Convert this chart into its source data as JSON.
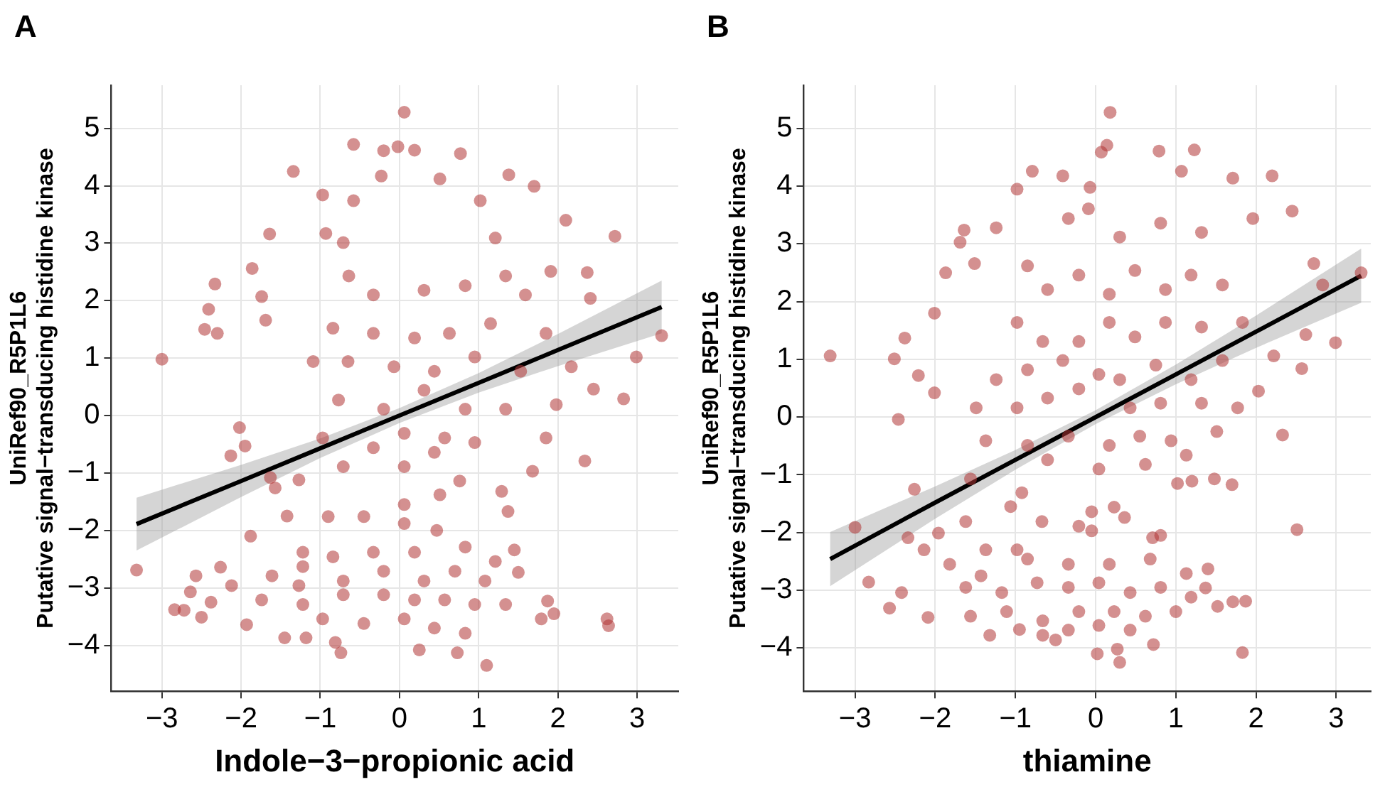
{
  "chart_data": [
    {
      "type": "scatter",
      "title": "A",
      "xlabel": "Indole−3−propionic acid",
      "ylabel": "UniRef90_R5P1L6\nPutative signal−transducing histidine kinase",
      "xlim": [
        -3.64,
        3.52
      ],
      "ylim": [
        -4.8,
        5.75
      ],
      "xticks": [
        {
          "value": -3,
          "label": "−3"
        },
        {
          "value": -2,
          "label": "−2"
        },
        {
          "value": -1,
          "label": "−1"
        },
        0,
        1,
        2,
        3
      ],
      "yticks": [
        {
          "value": -4,
          "label": "−4"
        },
        {
          "value": -3,
          "label": "−3"
        },
        {
          "value": -2,
          "label": "−2"
        },
        {
          "value": -1,
          "label": "−1"
        },
        0,
        1,
        2,
        3,
        4,
        5
      ],
      "grid": true,
      "marker": "circle",
      "series": [
        {
          "color": "#b03535",
          "x": [
            -3.32,
            -3.0,
            -2.46,
            -2.41,
            -2.33,
            -2.3,
            0.06,
            -0.58,
            -0.2,
            -0.02,
            0.19,
            0.77,
            -1.34,
            1.38,
            1.7,
            2.1,
            2.72,
            3.31,
            2.99,
            2.83,
            2.45,
            2.34,
            2.41,
            2.37,
            2.62,
            2.64,
            1.95,
            1.87,
            1.5,
            1.45,
            1.37,
            1.29,
            1.1,
            0.73,
            0.25,
            -0.74,
            -0.81,
            -1.45,
            -1.18,
            -1.93,
            -2.5,
            -2.84,
            -2.72,
            -2.64,
            -2.57,
            -2.38,
            -2.26,
            -2.02,
            -2.13,
            -1.95,
            -1.88,
            -1.86,
            -1.74,
            -1.69,
            -1.64,
            -1.57,
            -1.63,
            -1.42,
            -1.27,
            -1.27,
            -0.97,
            -0.93,
            -0.58,
            -0.23,
            0.51,
            1.02,
            1.21,
            -0.71,
            -0.64,
            -0.33,
            0.31,
            0.83,
            1.34,
            1.59,
            1.91,
            -0.84,
            -0.33,
            0.19,
            0.63,
            1.15,
            1.85,
            -1.09,
            -0.65,
            -0.07,
            0.44,
            0.95,
            1.53,
            2.17,
            -0.77,
            -0.2,
            0.31,
            0.83,
            1.34,
            1.98,
            -0.97,
            -0.33,
            0.06,
            0.57,
            0.95,
            1.85,
            -0.71,
            0.06,
            0.44,
            1.68,
            0.06,
            0.51,
            0.76,
            0.06,
            0.47,
            -0.9,
            -0.45,
            -1.22,
            -0.84,
            -0.33,
            0.19,
            0.83,
            1.21,
            -1.61,
            -1.22,
            -0.71,
            -0.2,
            0.31,
            0.7,
            1.08,
            -1.74,
            -1.22,
            -0.71,
            -0.2,
            0.19,
            0.57,
            0.95,
            1.34,
            -0.97,
            -0.45,
            0.06,
            0.44,
            0.83,
            -2.12,
            1.79
          ],
          "values": [
            -2.69,
            0.98,
            1.5,
            1.85,
            2.29,
            1.43,
            5.28,
            4.72,
            4.61,
            4.68,
            4.62,
            4.56,
            4.25,
            4.19,
            3.99,
            3.4,
            3.12,
            1.39,
            1.02,
            0.29,
            0.46,
            -0.79,
            2.04,
            2.49,
            -3.54,
            -3.66,
            -3.45,
            -3.23,
            -2.73,
            -2.34,
            -1.67,
            -1.32,
            -4.35,
            -4.13,
            -4.08,
            -4.13,
            -3.95,
            -3.87,
            -3.87,
            -3.64,
            -3.51,
            -3.38,
            -3.39,
            -3.07,
            -2.79,
            -3.25,
            -2.64,
            -0.21,
            -0.7,
            -0.53,
            -2.1,
            2.56,
            2.07,
            1.66,
            3.16,
            -1.26,
            -1.08,
            -1.75,
            -1.12,
            -2.96,
            3.84,
            3.17,
            3.74,
            4.17,
            4.12,
            3.74,
            3.09,
            3.01,
            2.43,
            2.1,
            2.18,
            2.26,
            2.43,
            2.1,
            2.51,
            1.52,
            1.43,
            1.35,
            1.43,
            1.6,
            1.43,
            0.94,
            0.94,
            0.85,
            0.77,
            1.02,
            0.77,
            0.85,
            0.27,
            0.11,
            0.44,
            0.11,
            0.11,
            0.19,
            -0.39,
            -0.56,
            -0.31,
            -0.39,
            -0.47,
            -0.39,
            -0.89,
            -0.89,
            -0.64,
            -0.97,
            -1.55,
            -1.38,
            -1.14,
            -1.88,
            -2.0,
            -1.76,
            -1.76,
            -2.38,
            -2.46,
            -2.38,
            -2.38,
            -2.29,
            -2.54,
            -2.79,
            -2.63,
            -2.88,
            -2.71,
            -2.88,
            -2.71,
            -2.88,
            -3.21,
            -3.29,
            -3.12,
            -3.12,
            -3.21,
            -3.21,
            -3.29,
            -3.29,
            -3.54,
            -3.62,
            -3.54,
            -3.7,
            -3.79,
            -2.96,
            -3.54
          ]
        },
        {
          "type": "line",
          "marker": "none",
          "color": "#000000",
          "x": [
            -3.32,
            -2,
            -1,
            0,
            1,
            2,
            3.31
          ],
          "values": [
            -1.89,
            -1.14,
            -0.57,
            0,
            0.57,
            1.14,
            1.89
          ],
          "lower": [
            -2.35,
            -1.42,
            -0.74,
            -0.13,
            0.4,
            0.86,
            1.43
          ],
          "upper": [
            -1.43,
            -0.86,
            -0.4,
            0.13,
            0.74,
            1.42,
            2.35
          ]
        }
      ]
    },
    {
      "type": "scatter",
      "title": "B",
      "xlabel": "thiamine",
      "ylabel": "UniRef90_R5P1L6\nPutative signal−transducing histidine kinase",
      "xlim": [
        -3.64,
        3.43
      ],
      "ylim": [
        -4.75,
        5.75
      ],
      "xticks": [
        {
          "value": -3,
          "label": "−3"
        },
        {
          "value": -2,
          "label": "−2"
        },
        {
          "value": -1,
          "label": "−1"
        },
        0,
        1,
        2,
        3
      ],
      "yticks": [
        {
          "value": -4,
          "label": "−4"
        },
        {
          "value": -3,
          "label": "−3"
        },
        {
          "value": -2,
          "label": "−2"
        },
        {
          "value": -1,
          "label": "−1"
        },
        0,
        1,
        2,
        3,
        4,
        5
      ],
      "grid": true,
      "marker": "circle",
      "series": [
        {
          "color": "#b03535",
          "x": [
            -3.31,
            -3.0,
            -2.46,
            -2.38,
            -2.51,
            -2.21,
            -2.26,
            -2.34,
            -2.83,
            -2.57,
            -2.42,
            -2.09,
            -2.14,
            -1.96,
            -2.01,
            -2.01,
            -1.87,
            -1.69,
            -1.64,
            -1.51,
            -1.24,
            -0.98,
            -0.79,
            -0.41,
            -0.07,
            0.07,
            0.14,
            0.18,
            0.79,
            1.23,
            1.07,
            1.71,
            2.2,
            2.45,
            1.96,
            2.72,
            2.83,
            3.31,
            2.99,
            2.57,
            2.62,
            2.33,
            2.51,
            2.03,
            2.22,
            1.83,
            1.87,
            1.71,
            1.52,
            1.4,
            1.37,
            1.7,
            1.48,
            1.2,
            1.02,
            0.81,
            0.71,
            0.27,
            0.3,
            0.02,
            0.72,
            -0.5,
            -0.66,
            -0.95,
            -1.32,
            -1.56,
            -1.43,
            -0.98,
            -0.67,
            -1.06,
            -0.92,
            -0.05,
            0.23,
            0.36,
            -0.21,
            -0.05,
            -1.62,
            -1.56,
            -0.85,
            -0.6,
            -0.21,
            0.17,
            0.49,
            0.87,
            1.19,
            1.58,
            -0.98,
            -0.66,
            -0.21,
            0.17,
            0.49,
            0.87,
            1.32,
            1.83,
            -1.24,
            -0.85,
            -0.41,
            0.04,
            0.3,
            0.75,
            1.19,
            1.58,
            -1.49,
            -0.98,
            -0.6,
            -0.21,
            0.43,
            0.81,
            1.32,
            1.77,
            -1.37,
            -0.85,
            -0.34,
            0.17,
            0.55,
            0.94,
            1.51,
            -0.6,
            0.04,
            0.62,
            1.13,
            -0.34,
            0.3,
            0.81,
            1.32,
            -0.09,
            -1.82,
            -1.37,
            -0.85,
            -0.34,
            0.17,
            0.68,
            1.13,
            -1.62,
            -1.17,
            -0.73,
            -0.34,
            0.04,
            0.43,
            0.81,
            1.19,
            -1.11,
            -0.66,
            -0.21,
            0.23,
            0.62,
            1.0,
            -0.34,
            0.04,
            0.43
          ],
          "values": [
            1.06,
            -1.91,
            -0.04,
            1.37,
            1.01,
            0.72,
            -1.25,
            -2.09,
            -2.86,
            -3.31,
            -3.04,
            -3.47,
            -2.3,
            -2.01,
            0.42,
            1.8,
            2.5,
            3.03,
            3.24,
            2.66,
            3.28,
            3.95,
            4.26,
            4.18,
            3.98,
            4.59,
            4.71,
            5.28,
            4.61,
            4.63,
            4.26,
            4.14,
            4.18,
            3.57,
            3.44,
            2.66,
            2.29,
            2.5,
            1.29,
            0.84,
            1.43,
            -0.31,
            -1.95,
            0.45,
            1.06,
            -4.08,
            -3.19,
            -3.2,
            -3.28,
            -2.63,
            -2.96,
            -1.17,
            -1.07,
            -1.11,
            -1.15,
            -2.05,
            -2.09,
            -4.02,
            -4.25,
            -4.1,
            -3.94,
            -3.86,
            -3.78,
            -3.68,
            -3.78,
            -3.45,
            -2.75,
            -2.3,
            -1.81,
            -1.55,
            -1.31,
            -1.64,
            -1.56,
            -1.74,
            -1.89,
            -1.97,
            -1.81,
            -1.07,
            2.62,
            2.21,
            2.46,
            2.13,
            2.54,
            2.21,
            2.46,
            2.29,
            1.64,
            1.31,
            1.31,
            1.64,
            1.39,
            1.64,
            1.56,
            1.64,
            0.65,
            0.82,
            0.98,
            0.74,
            0.65,
            0.9,
            0.65,
            0.98,
            0.16,
            0.16,
            0.33,
            0.49,
            0.16,
            0.24,
            0.24,
            0.16,
            -0.41,
            -0.49,
            -0.33,
            -0.49,
            -0.33,
            -0.41,
            -0.25,
            -0.74,
            -0.9,
            -0.82,
            -0.66,
            3.44,
            3.12,
            3.36,
            3.2,
            3.61,
            -2.55,
            -2.3,
            -2.46,
            -2.55,
            -2.55,
            -2.46,
            -2.71,
            -2.95,
            -3.04,
            -2.87,
            -2.95,
            -2.87,
            -3.04,
            -2.95,
            -3.12,
            -3.37,
            -3.53,
            -3.37,
            -3.37,
            -3.45,
            -3.37,
            -3.69,
            -3.61,
            -3.69
          ]
        },
        {
          "type": "line",
          "marker": "none",
          "color": "#000000",
          "x": [
            -3.31,
            -2,
            -1,
            0,
            1,
            2,
            3.31
          ],
          "values": [
            -2.46,
            -1.48,
            -0.74,
            0,
            0.74,
            1.48,
            2.45
          ],
          "lower": [
            -2.93,
            -1.76,
            -0.91,
            -0.12,
            0.57,
            1.2,
            1.98
          ],
          "upper": [
            -1.99,
            -1.2,
            -0.57,
            0.12,
            0.91,
            1.76,
            2.92
          ]
        }
      ]
    }
  ]
}
